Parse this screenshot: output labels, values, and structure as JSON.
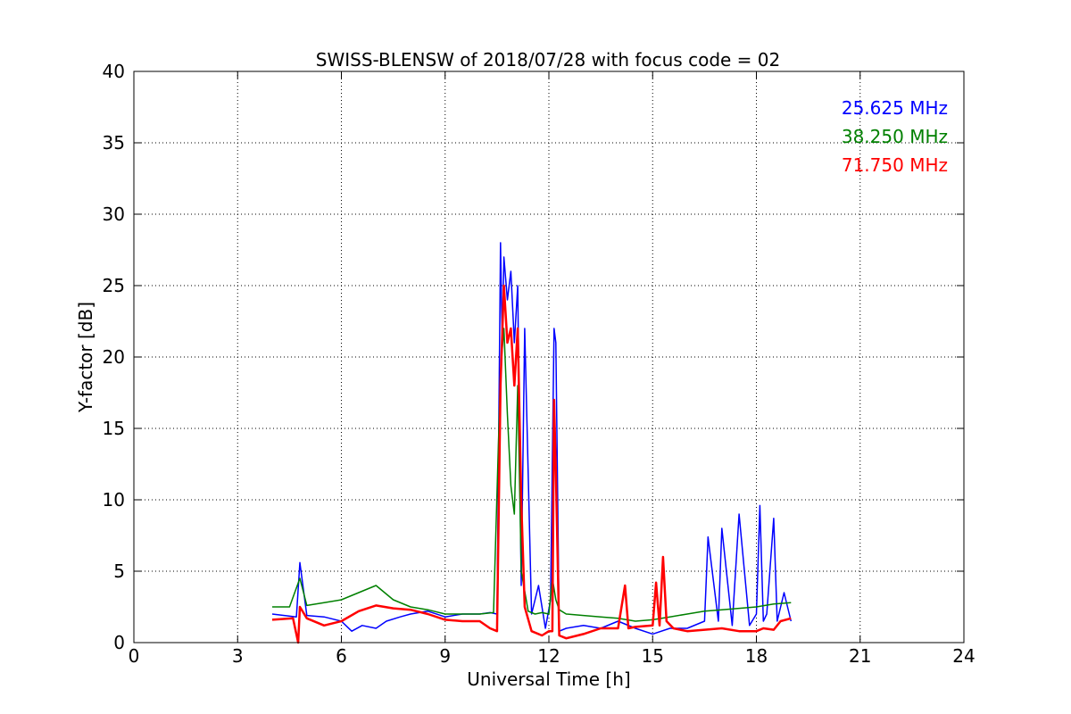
{
  "chart_data": {
    "type": "line",
    "title": "SWISS-BLENSW of 2018/07/28 with focus code = 02",
    "xlabel": "Universal Time [h]",
    "ylabel": "Y-factor [dB]",
    "xlim": [
      0,
      24
    ],
    "ylim": [
      0,
      40
    ],
    "xticks": [
      0,
      3,
      6,
      9,
      12,
      15,
      18,
      21,
      24
    ],
    "yticks": [
      0,
      5,
      10,
      15,
      20,
      25,
      30,
      35,
      40
    ],
    "grid": true,
    "legend_position": "top-right",
    "series": [
      {
        "name": "25.625 MHz",
        "color": "#0000ff",
        "x": [
          4.0,
          4.7,
          4.8,
          5.0,
          5.5,
          6.0,
          6.3,
          6.6,
          7.0,
          7.3,
          7.7,
          8.0,
          8.5,
          9.0,
          9.5,
          10.0,
          10.3,
          10.5,
          10.6,
          10.65,
          10.7,
          10.8,
          10.9,
          11.0,
          11.1,
          11.15,
          11.2,
          11.3,
          11.5,
          11.7,
          11.9,
          12.05,
          12.15,
          12.2,
          12.3,
          12.5,
          13.0,
          13.5,
          14.0,
          14.5,
          15.0,
          15.5,
          16.0,
          16.5,
          16.6,
          16.9,
          17.0,
          17.3,
          17.5,
          17.8,
          18.0,
          18.1,
          18.2,
          18.3,
          18.5,
          18.6,
          18.8,
          19.0
        ],
        "y": [
          2.0,
          1.8,
          5.6,
          1.9,
          1.8,
          1.5,
          0.8,
          1.2,
          1.0,
          1.5,
          1.8,
          2.0,
          2.2,
          1.8,
          2.0,
          2.0,
          2.1,
          2.0,
          28.0,
          21.0,
          27.0,
          24.0,
          26.0,
          21.0,
          25.0,
          14.0,
          4.0,
          22.0,
          2.0,
          4.0,
          1.0,
          3.0,
          22.0,
          21.0,
          0.8,
          1.0,
          1.2,
          1.0,
          1.5,
          1.0,
          0.6,
          1.0,
          1.0,
          1.5,
          7.4,
          1.5,
          8.0,
          1.2,
          9.0,
          1.2,
          2.0,
          9.6,
          1.5,
          2.0,
          8.7,
          1.5,
          3.5,
          1.5
        ]
      },
      {
        "name": "38.250 MHz",
        "color": "#008000",
        "x": [
          4.0,
          4.5,
          4.8,
          5.0,
          5.5,
          6.0,
          6.5,
          7.0,
          7.5,
          8.0,
          8.5,
          9.0,
          9.5,
          10.0,
          10.4,
          10.6,
          10.7,
          10.8,
          10.9,
          11.0,
          11.1,
          11.2,
          11.4,
          11.6,
          11.8,
          12.0,
          12.1,
          12.2,
          12.3,
          12.5,
          13.0,
          13.5,
          14.0,
          14.5,
          15.0,
          15.5,
          16.0,
          16.5,
          17.0,
          17.5,
          18.0,
          18.5,
          19.0
        ],
        "y": [
          2.5,
          2.5,
          4.5,
          2.6,
          2.8,
          3.0,
          3.5,
          4.0,
          3.0,
          2.5,
          2.3,
          2.0,
          2.0,
          2.0,
          2.1,
          19.0,
          22.0,
          16.0,
          11.0,
          9.0,
          18.0,
          5.0,
          2.2,
          2.0,
          2.1,
          2.0,
          4.5,
          3.0,
          2.3,
          2.0,
          1.9,
          1.8,
          1.7,
          1.5,
          1.6,
          1.8,
          2.0,
          2.2,
          2.3,
          2.4,
          2.5,
          2.7,
          2.8
        ]
      },
      {
        "name": "71.750 MHz",
        "color": "#ff0000",
        "x": [
          4.0,
          4.6,
          4.75,
          4.8,
          5.0,
          5.5,
          6.0,
          6.5,
          7.0,
          7.5,
          8.0,
          8.5,
          9.0,
          9.5,
          10.0,
          10.3,
          10.5,
          10.6,
          10.7,
          10.8,
          10.9,
          11.0,
          11.1,
          11.2,
          11.3,
          11.5,
          11.8,
          12.0,
          12.1,
          12.15,
          12.2,
          12.3,
          12.5,
          13.0,
          13.5,
          14.0,
          14.2,
          14.3,
          14.5,
          15.0,
          15.1,
          15.2,
          15.3,
          15.4,
          15.6,
          16.0,
          16.5,
          17.0,
          17.5,
          18.0,
          18.2,
          18.5,
          18.7,
          19.0
        ],
        "y": [
          1.6,
          1.7,
          0.0,
          2.5,
          1.7,
          1.2,
          1.5,
          2.2,
          2.6,
          2.4,
          2.3,
          2.0,
          1.6,
          1.5,
          1.5,
          1.0,
          0.8,
          18.0,
          25.0,
          21.0,
          22.0,
          18.0,
          22.0,
          10.0,
          2.5,
          0.8,
          0.5,
          0.8,
          0.8,
          17.0,
          12.0,
          0.5,
          0.3,
          0.6,
          1.0,
          1.0,
          4.0,
          1.0,
          1.1,
          1.2,
          4.2,
          1.2,
          6.0,
          1.5,
          1.0,
          0.8,
          0.9,
          1.0,
          0.8,
          0.8,
          1.0,
          0.9,
          1.5,
          1.7
        ]
      }
    ]
  }
}
